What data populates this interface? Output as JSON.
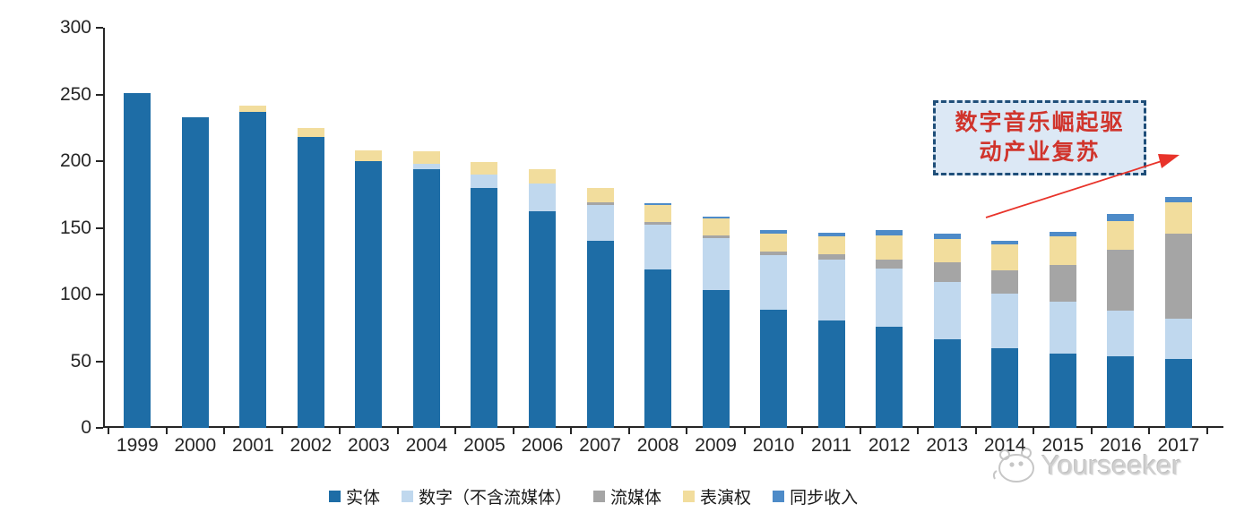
{
  "chart_data": {
    "type": "bar",
    "stacked": true,
    "title": "",
    "xlabel": "",
    "ylabel": "",
    "ylim": [
      0,
      300
    ],
    "y_ticks": [
      0,
      50,
      100,
      150,
      200,
      250,
      300
    ],
    "grid": false,
    "legend_position": "bottom",
    "categories": [
      "1999",
      "2000",
      "2001",
      "2002",
      "2003",
      "2004",
      "2005",
      "2006",
      "2007",
      "2008",
      "2009",
      "2010",
      "2011",
      "2012",
      "2013",
      "2014",
      "2015",
      "2016",
      "2017"
    ],
    "series": [
      {
        "key": "physical",
        "name": "实体",
        "color": "#1e6da6",
        "values": [
          252,
          234,
          238,
          219,
          201,
          195,
          181,
          163,
          141,
          119,
          104,
          89,
          81,
          76,
          67,
          60,
          56,
          54,
          52
        ]
      },
      {
        "key": "digital-excl-streaming",
        "name": "数字（不含流媒体）",
        "color": "#c0d8ee",
        "values": [
          0,
          0,
          0,
          0,
          0,
          4,
          10,
          21,
          27,
          34,
          39,
          41,
          46,
          44,
          43,
          41,
          39,
          34,
          30
        ]
      },
      {
        "key": "streaming",
        "name": "流媒体",
        "color": "#a5a5a5",
        "values": [
          0,
          0,
          0,
          0,
          0,
          0,
          0,
          0,
          2,
          2,
          2,
          3,
          4,
          7,
          15,
          18,
          28,
          46,
          64
        ]
      },
      {
        "key": "performance-rights",
        "name": "表演权",
        "color": "#f2dd9d",
        "values": [
          0,
          0,
          5,
          7,
          8,
          9,
          9,
          11,
          11,
          13,
          13,
          13,
          13,
          18,
          17,
          19,
          21,
          22,
          24
        ]
      },
      {
        "key": "sync-revenue",
        "name": "同步收入",
        "color": "#4e8bc8",
        "values": [
          0,
          0,
          0,
          0,
          0,
          0,
          0,
          0,
          0,
          1,
          1,
          3,
          3,
          4,
          4,
          3,
          4,
          5,
          4
        ]
      }
    ]
  },
  "annotation": {
    "text": "数字音乐崛起驱动产业复苏",
    "lines": [
      "数字音乐崛起驱",
      "动产业复苏"
    ],
    "box_fill": "#dce8f5",
    "border_color": "#1f4e79",
    "text_color": "#d0342c",
    "arrow_color": "#e8332a"
  },
  "watermark": {
    "brand": "Yourseeker"
  }
}
